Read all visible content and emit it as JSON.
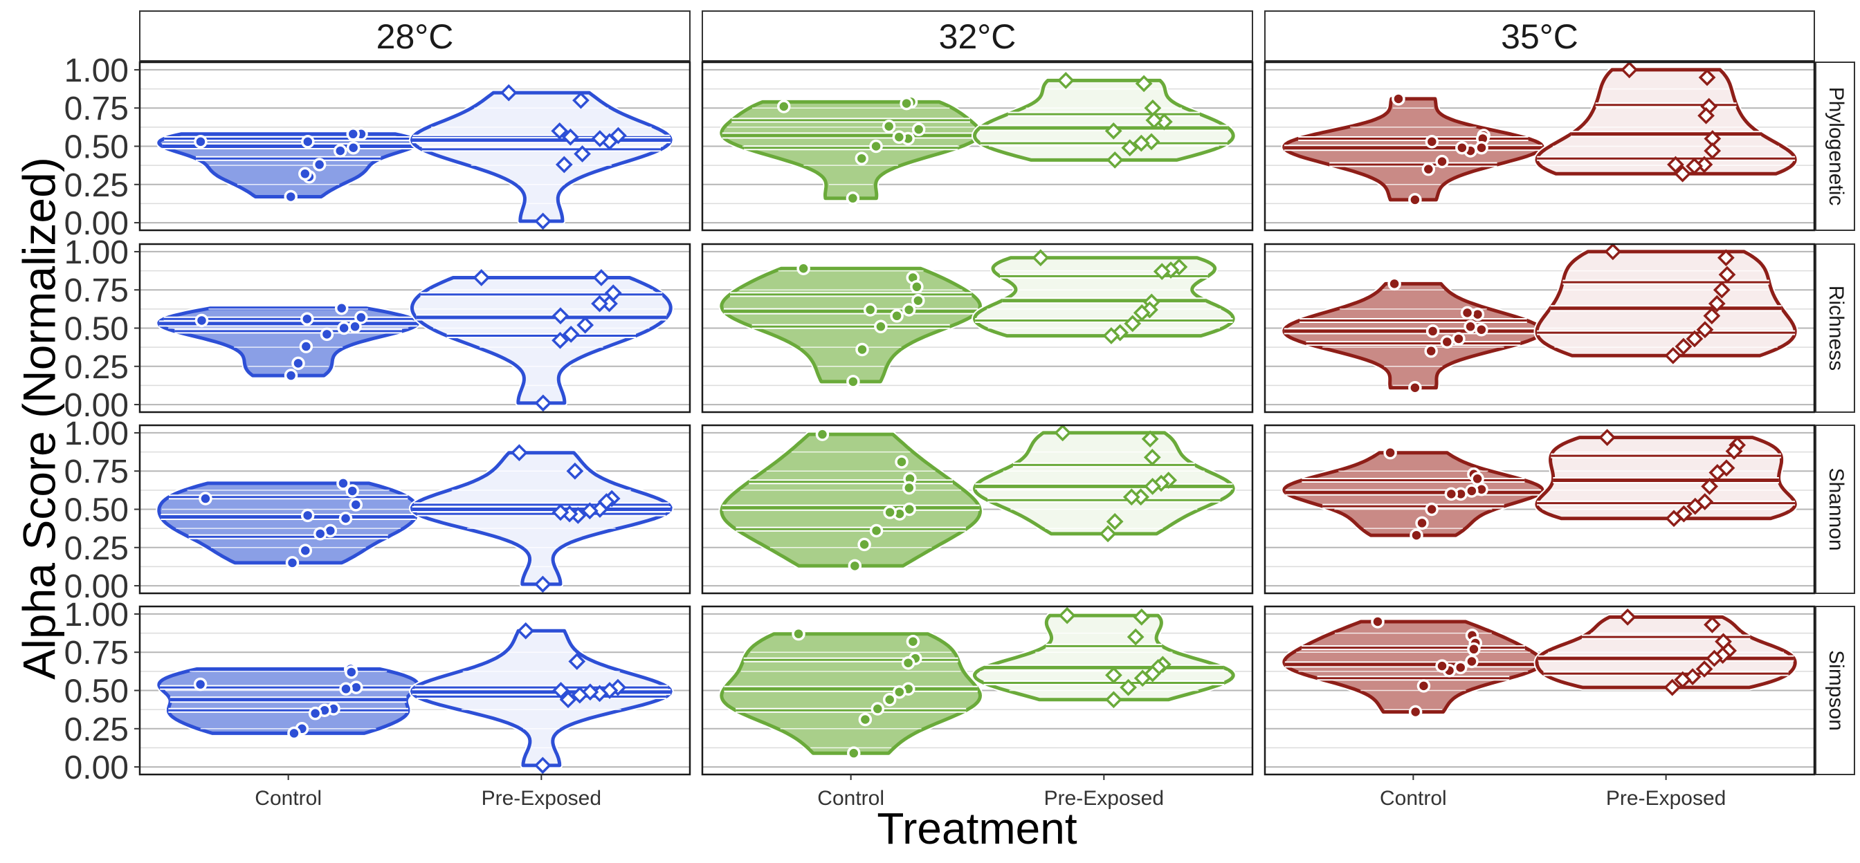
{
  "chart_data": {
    "type": "violin",
    "ylabel": "Alpha Score (Normalized)",
    "xlabel": "Treatment",
    "ylim": [
      0,
      1
    ],
    "yticks": [
      "0.00",
      "0.25",
      "0.50",
      "0.75",
      "1.00"
    ],
    "ytick_values": [
      0,
      0.25,
      0.5,
      0.75,
      1.0
    ],
    "categories": [
      "Control",
      "Pre-Exposed"
    ],
    "columns": [
      {
        "label": "28°C",
        "color": "#2d4fd6",
        "fill": "#8a9fe6",
        "fill_light": "#eef1fc"
      },
      {
        "label": "32°C",
        "color": "#6aaa3a",
        "fill": "#a9cf8a",
        "fill_light": "#f2f8ed"
      },
      {
        "label": "35°C",
        "color": "#8e1e18",
        "fill": "#c98a86",
        "fill_light": "#f7ecec"
      }
    ],
    "rows": [
      "Phylogenetic",
      "Richness",
      "Shannon",
      "Simpson"
    ],
    "point_shapes": {
      "Control": "circle",
      "Pre-Exposed": "diamond"
    },
    "grid": true,
    "panels": [
      [
        {
          "control": {
            "points": [
              0.53,
              0.58,
              0.58,
              0.49,
              0.47,
              0.38,
              0.3,
              0.32,
              0.53,
              0.17
            ],
            "median": 0.5,
            "q1": 0.42,
            "q3": 0.55
          },
          "pre": {
            "points": [
              0.85,
              0.8,
              0.57,
              0.53,
              0.55,
              0.45,
              0.38,
              0.56,
              0.6,
              0.01
            ],
            "median": 0.54,
            "q1": 0.48,
            "q3": 0.56
          }
        },
        {
          "control": {
            "points": [
              0.55,
              0.63,
              0.57,
              0.51,
              0.5,
              0.46,
              0.38,
              0.27,
              0.56,
              0.19
            ],
            "median": 0.53,
            "q1": 0.48,
            "q3": 0.56
          },
          "pre": {
            "points": [
              0.83,
              0.83,
              0.73,
              0.66,
              0.66,
              0.52,
              0.46,
              0.42,
              0.58,
              0.01
            ],
            "median": 0.57,
            "q1": 0.45,
            "q3": 0.72
          }
        },
        {
          "control": {
            "points": [
              0.57,
              0.67,
              0.62,
              0.53,
              0.44,
              0.36,
              0.34,
              0.23,
              0.46,
              0.15
            ],
            "median": 0.45,
            "q1": 0.32,
            "q3": 0.58
          },
          "pre": {
            "points": [
              0.87,
              0.75,
              0.57,
              0.55,
              0.5,
              0.49,
              0.46,
              0.47,
              0.48,
              0.01
            ],
            "median": 0.5,
            "q1": 0.47,
            "q3": 0.53
          }
        },
        {
          "control": {
            "points": [
              0.54,
              0.64,
              0.62,
              0.52,
              0.51,
              0.38,
              0.37,
              0.35,
              0.25,
              0.22
            ],
            "median": 0.44,
            "q1": 0.37,
            "q3": 0.52
          },
          "pre": {
            "points": [
              0.89,
              0.69,
              0.52,
              0.5,
              0.48,
              0.49,
              0.47,
              0.44,
              0.5,
              0.01
            ],
            "median": 0.49,
            "q1": 0.46,
            "q3": 0.52
          }
        }
      ],
      [
        {
          "control": {
            "points": [
              0.76,
              0.79,
              0.78,
              0.61,
              0.55,
              0.56,
              0.63,
              0.5,
              0.42,
              0.16
            ],
            "median": 0.57,
            "q1": 0.49,
            "q3": 0.67
          },
          "pre": {
            "points": [
              0.93,
              0.91,
              0.75,
              0.66,
              0.67,
              0.53,
              0.52,
              0.49,
              0.41,
              0.6
            ],
            "median": 0.62,
            "q1": 0.52,
            "q3": 0.71
          }
        },
        {
          "control": {
            "points": [
              0.89,
              0.83,
              0.77,
              0.68,
              0.62,
              0.58,
              0.51,
              0.36,
              0.62,
              0.15
            ],
            "median": 0.61,
            "q1": 0.51,
            "q3": 0.72
          },
          "pre": {
            "points": [
              0.96,
              0.9,
              0.88,
              0.87,
              0.67,
              0.62,
              0.6,
              0.53,
              0.47,
              0.45
            ],
            "median": 0.68,
            "q1": 0.55,
            "q3": 0.84
          }
        },
        {
          "control": {
            "points": [
              0.99,
              0.81,
              0.7,
              0.64,
              0.5,
              0.47,
              0.48,
              0.36,
              0.27,
              0.13
            ],
            "median": 0.51,
            "q1": 0.37,
            "q3": 0.68
          },
          "pre": {
            "points": [
              1.0,
              0.96,
              0.84,
              0.69,
              0.67,
              0.65,
              0.58,
              0.58,
              0.42,
              0.34
            ],
            "median": 0.65,
            "q1": 0.56,
            "q3": 0.79
          }
        },
        {
          "control": {
            "points": [
              0.87,
              0.82,
              0.71,
              0.68,
              0.51,
              0.49,
              0.44,
              0.38,
              0.31,
              0.09
            ],
            "median": 0.51,
            "q1": 0.37,
            "q3": 0.7
          },
          "pre": {
            "points": [
              0.99,
              0.98,
              0.85,
              0.67,
              0.65,
              0.61,
              0.58,
              0.52,
              0.44,
              0.6
            ],
            "median": 0.65,
            "q1": 0.55,
            "q3": 0.79
          }
        }
      ],
      [
        {
          "control": {
            "points": [
              0.81,
              0.57,
              0.55,
              0.49,
              0.47,
              0.49,
              0.4,
              0.35,
              0.53,
              0.15
            ],
            "median": 0.49,
            "q1": 0.38,
            "q3": 0.55
          },
          "pre": {
            "points": [
              1.0,
              0.95,
              0.76,
              0.7,
              0.55,
              0.47,
              0.38,
              0.37,
              0.32,
              0.38
            ],
            "median": 0.58,
            "q1": 0.42,
            "q3": 0.77
          }
        },
        {
          "control": {
            "points": [
              0.79,
              0.59,
              0.6,
              0.49,
              0.51,
              0.43,
              0.41,
              0.35,
              0.48,
              0.11
            ],
            "median": 0.48,
            "q1": 0.4,
            "q3": 0.55
          },
          "pre": {
            "points": [
              1.0,
              0.96,
              0.85,
              0.75,
              0.66,
              0.58,
              0.49,
              0.43,
              0.38,
              0.32
            ],
            "median": 0.63,
            "q1": 0.47,
            "q3": 0.8
          }
        },
        {
          "control": {
            "points": [
              0.87,
              0.73,
              0.7,
              0.63,
              0.62,
              0.6,
              0.6,
              0.5,
              0.41,
              0.33
            ],
            "median": 0.61,
            "q1": 0.52,
            "q3": 0.69
          },
          "pre": {
            "points": [
              0.97,
              0.92,
              0.88,
              0.77,
              0.74,
              0.65,
              0.55,
              0.52,
              0.47,
              0.44
            ],
            "median": 0.69,
            "q1": 0.54,
            "q3": 0.85
          }
        },
        {
          "control": {
            "points": [
              0.95,
              0.86,
              0.81,
              0.77,
              0.69,
              0.65,
              0.63,
              0.66,
              0.53,
              0.36
            ],
            "median": 0.67,
            "q1": 0.58,
            "q3": 0.78
          },
          "pre": {
            "points": [
              0.98,
              0.93,
              0.82,
              0.76,
              0.73,
              0.71,
              0.64,
              0.59,
              0.57,
              0.52
            ],
            "median": 0.71,
            "q1": 0.61,
            "q3": 0.85
          }
        }
      ]
    ]
  }
}
